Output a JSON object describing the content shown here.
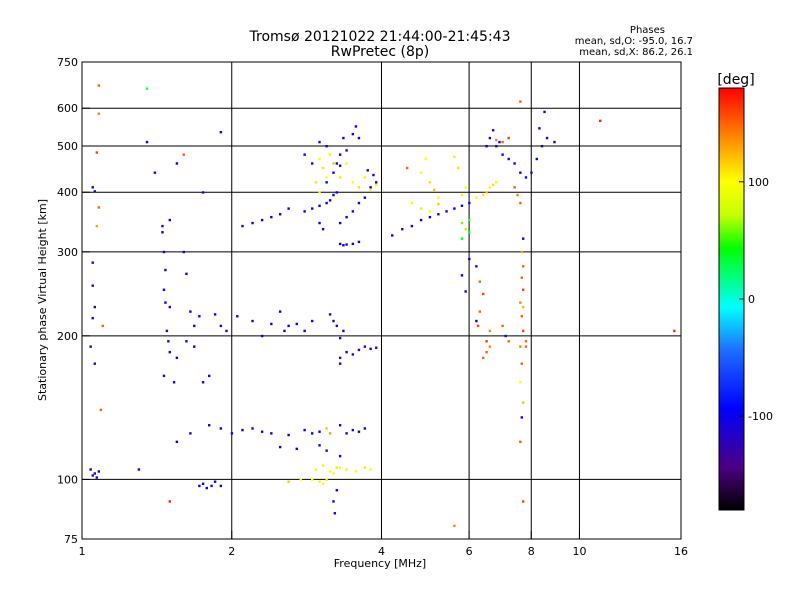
{
  "chart_data": {
    "type": "scatter",
    "title": "Tromsø 20121022 21:44:00-21:45:43",
    "subtitle": "RwPretec (8p)",
    "stats": {
      "heading": "Phases",
      "line1": "mean, sd,O: -95.0, 16.7",
      "line2": "mean, sd,X:  86.2, 26.1"
    },
    "xlabel": "Frequency [MHz]",
    "ylabel": "Stationary phase Virtual Height [km]",
    "xscale": "log",
    "yscale": "log",
    "xlim": [
      1,
      16
    ],
    "ylim": [
      75,
      750
    ],
    "xticks": [
      1,
      2,
      4,
      6,
      8,
      10,
      16
    ],
    "yticks": [
      75,
      100,
      200,
      300,
      400,
      500,
      600,
      750
    ],
    "grid": true,
    "colorbar": {
      "label": "[deg]",
      "range": [
        -180,
        180
      ],
      "ticks": [
        100,
        0,
        -100
      ]
    },
    "points": [
      [
        1.04,
        105,
        -100
      ],
      [
        1.06,
        103,
        -110
      ],
      [
        1.08,
        104,
        -95
      ],
      [
        1.05,
        102,
        -120
      ],
      [
        1.07,
        101,
        -105
      ],
      [
        1.05,
        218,
        -120
      ],
      [
        1.06,
        230,
        -130
      ],
      [
        1.04,
        190,
        -130
      ],
      [
        1.06,
        175,
        -125
      ],
      [
        1.05,
        255,
        -110
      ],
      [
        1.05,
        285,
        -115
      ],
      [
        1.08,
        585,
        140
      ],
      [
        1.07,
        485,
        160
      ],
      [
        1.08,
        372,
        150
      ],
      [
        1.07,
        340,
        130
      ],
      [
        1.06,
        402,
        -105
      ],
      [
        1.05,
        410,
        -100
      ],
      [
        1.1,
        210,
        150
      ],
      [
        1.09,
        140,
        150
      ],
      [
        1.08,
        670,
        150
      ],
      [
        1.35,
        660,
        20
      ],
      [
        1.5,
        90,
        170
      ],
      [
        1.3,
        105,
        -110
      ],
      [
        1.45,
        340,
        -100
      ],
      [
        1.45,
        330,
        -110
      ],
      [
        1.5,
        350,
        -95
      ],
      [
        1.46,
        300,
        -100
      ],
      [
        1.47,
        275,
        -110
      ],
      [
        1.46,
        250,
        -105
      ],
      [
        1.47,
        235,
        -95
      ],
      [
        1.5,
        230,
        -105
      ],
      [
        1.48,
        205,
        -115
      ],
      [
        1.49,
        195,
        -120
      ],
      [
        1.5,
        185,
        -110
      ],
      [
        1.55,
        180,
        -100
      ],
      [
        1.46,
        165,
        -105
      ],
      [
        1.53,
        160,
        -100
      ],
      [
        1.6,
        300,
        -100
      ],
      [
        1.62,
        270,
        -110
      ],
      [
        1.65,
        225,
        -100
      ],
      [
        1.68,
        210,
        -95
      ],
      [
        1.62,
        195,
        -105
      ],
      [
        1.68,
        190,
        -110
      ],
      [
        1.75,
        160,
        -100
      ],
      [
        1.8,
        165,
        -110
      ],
      [
        1.72,
        220,
        -95
      ],
      [
        1.85,
        222,
        -105
      ],
      [
        1.9,
        210,
        -100
      ],
      [
        1.95,
        205,
        -110
      ],
      [
        2.05,
        220,
        -100
      ],
      [
        2.2,
        215,
        -105
      ],
      [
        2.3,
        200,
        -100
      ],
      [
        2.4,
        212,
        -110
      ],
      [
        2.5,
        225,
        -100
      ],
      [
        2.55,
        205,
        -105
      ],
      [
        2.6,
        210,
        -95
      ],
      [
        2.7,
        212,
        -100
      ],
      [
        2.8,
        205,
        -110
      ],
      [
        2.9,
        215,
        -100
      ],
      [
        1.72,
        97,
        -110
      ],
      [
        1.75,
        98,
        -105
      ],
      [
        1.78,
        96,
        -100
      ],
      [
        1.82,
        97,
        -110
      ],
      [
        1.85,
        99,
        -100
      ],
      [
        1.9,
        97,
        -105
      ],
      [
        2.9,
        100,
        100
      ],
      [
        3.0,
        99,
        90
      ],
      [
        3.05,
        98,
        95
      ],
      [
        3.1,
        100,
        110
      ],
      [
        2.75,
        100,
        100
      ],
      [
        2.6,
        99,
        120
      ],
      [
        3.2,
        90,
        -100
      ],
      [
        3.22,
        85,
        -110
      ],
      [
        3.25,
        95,
        -100
      ],
      [
        1.55,
        120,
        -100
      ],
      [
        1.65,
        125,
        -110
      ],
      [
        1.8,
        130,
        -100
      ],
      [
        1.9,
        128,
        -105
      ],
      [
        2.0,
        125,
        -100
      ],
      [
        2.1,
        127,
        -110
      ],
      [
        2.2,
        128,
        -100
      ],
      [
        2.3,
        126,
        -105
      ],
      [
        2.4,
        125,
        -110
      ],
      [
        2.6,
        124,
        -100
      ],
      [
        2.8,
        127,
        -105
      ],
      [
        2.9,
        125,
        -100
      ],
      [
        3.0,
        126,
        -110
      ],
      [
        3.1,
        128,
        120
      ],
      [
        3.15,
        125,
        130
      ],
      [
        3.3,
        130,
        -100
      ],
      [
        3.4,
        125,
        -105
      ],
      [
        3.5,
        127,
        -110
      ],
      [
        3.6,
        126,
        -100
      ],
      [
        3.7,
        128,
        -105
      ],
      [
        3.8,
        105,
        100
      ],
      [
        3.7,
        106,
        110
      ],
      [
        3.55,
        104,
        100
      ],
      [
        3.4,
        105,
        90
      ],
      [
        3.3,
        106,
        95
      ],
      [
        2.95,
        105,
        100
      ],
      [
        3.05,
        107,
        105
      ],
      [
        3.15,
        104,
        100
      ],
      [
        3.25,
        106,
        110
      ],
      [
        3.2,
        103,
        95
      ],
      [
        3.0,
        118,
        -100
      ],
      [
        3.1,
        115,
        -110
      ],
      [
        3.3,
        112,
        -105
      ],
      [
        2.7,
        116,
        -100
      ],
      [
        2.5,
        117,
        -105
      ],
      [
        3.3,
        180,
        -130
      ],
      [
        3.4,
        185,
        -125
      ],
      [
        3.5,
        183,
        -130
      ],
      [
        3.6,
        187,
        -135
      ],
      [
        3.7,
        190,
        -130
      ],
      [
        3.8,
        188,
        -125
      ],
      [
        3.9,
        189,
        -130
      ],
      [
        3.3,
        198,
        -130
      ],
      [
        3.35,
        205,
        -120
      ],
      [
        3.25,
        210,
        -125
      ],
      [
        3.2,
        215,
        -130
      ],
      [
        3.15,
        222,
        -125
      ],
      [
        3.3,
        175,
        -110
      ],
      [
        3.3,
        312,
        -100
      ],
      [
        3.35,
        310,
        -105
      ],
      [
        3.4,
        311,
        -110
      ],
      [
        3.5,
        312,
        -100
      ],
      [
        3.6,
        315,
        -105
      ],
      [
        3.3,
        345,
        -100
      ],
      [
        3.4,
        355,
        -105
      ],
      [
        3.5,
        365,
        -110
      ],
      [
        3.6,
        380,
        -100
      ],
      [
        3.7,
        390,
        -105
      ],
      [
        3.8,
        410,
        -110
      ],
      [
        3.9,
        420,
        -100
      ],
      [
        3.5,
        420,
        100
      ],
      [
        3.6,
        410,
        110
      ],
      [
        3.7,
        430,
        105
      ],
      [
        3.8,
        405,
        100
      ],
      [
        3.9,
        415,
        95
      ],
      [
        3.85,
        435,
        -100
      ],
      [
        3.75,
        445,
        -105
      ],
      [
        2.8,
        365,
        -100
      ],
      [
        2.9,
        370,
        -105
      ],
      [
        3.0,
        375,
        -110
      ],
      [
        3.1,
        380,
        -100
      ],
      [
        3.15,
        385,
        -105
      ],
      [
        3.2,
        395,
        -100
      ],
      [
        3.25,
        400,
        -110
      ],
      [
        2.6,
        370,
        -100
      ],
      [
        2.5,
        360,
        -105
      ],
      [
        2.4,
        355,
        -110
      ],
      [
        2.3,
        350,
        -100
      ],
      [
        2.2,
        345,
        -105
      ],
      [
        2.1,
        340,
        -110
      ],
      [
        3.0,
        345,
        -100
      ],
      [
        3.05,
        335,
        -105
      ],
      [
        3.1,
        420,
        -100
      ],
      [
        3.2,
        440,
        -105
      ],
      [
        3.25,
        460,
        -110
      ],
      [
        3.3,
        480,
        -100
      ],
      [
        3.35,
        520,
        -105
      ],
      [
        3.5,
        530,
        -110
      ],
      [
        3.55,
        550,
        -100
      ],
      [
        3.6,
        520,
        -105
      ],
      [
        3.4,
        490,
        -110
      ],
      [
        3.3,
        455,
        -100
      ],
      [
        2.8,
        480,
        -100
      ],
      [
        2.9,
        460,
        -105
      ],
      [
        3.0,
        510,
        -110
      ],
      [
        3.1,
        500,
        -100
      ],
      [
        3.0,
        470,
        100
      ],
      [
        3.05,
        450,
        110
      ],
      [
        3.1,
        430,
        100
      ],
      [
        3.2,
        460,
        120
      ],
      [
        3.15,
        480,
        105
      ],
      [
        3.4,
        460,
        100
      ],
      [
        3.3,
        430,
        110
      ],
      [
        3.0,
        400,
        95
      ],
      [
        2.95,
        420,
        110
      ],
      [
        4.2,
        325,
        -100
      ],
      [
        4.4,
        335,
        -105
      ],
      [
        4.6,
        340,
        -110
      ],
      [
        4.8,
        350,
        -100
      ],
      [
        5.0,
        355,
        -105
      ],
      [
        5.2,
        360,
        -110
      ],
      [
        5.4,
        365,
        -100
      ],
      [
        5.6,
        370,
        -105
      ],
      [
        5.8,
        375,
        -100
      ],
      [
        6.0,
        380,
        -110
      ],
      [
        4.6,
        380,
        100
      ],
      [
        4.8,
        370,
        110
      ],
      [
        5.0,
        365,
        100
      ],
      [
        5.2,
        378,
        115
      ],
      [
        5.8,
        345,
        60
      ],
      [
        5.9,
        335,
        70
      ],
      [
        6.0,
        350,
        50
      ],
      [
        5.8,
        320,
        40
      ],
      [
        6.0,
        330,
        30
      ],
      [
        4.5,
        450,
        150
      ],
      [
        4.8,
        440,
        100
      ],
      [
        5.0,
        420,
        110
      ],
      [
        5.1,
        405,
        120
      ],
      [
        5.2,
        390,
        100
      ],
      [
        4.9,
        470,
        100
      ],
      [
        5.6,
        475,
        80
      ],
      [
        5.7,
        450,
        110
      ],
      [
        5.9,
        410,
        100
      ],
      [
        5.8,
        395,
        105
      ],
      [
        6.2,
        390,
        100
      ],
      [
        6.4,
        395,
        110
      ],
      [
        6.5,
        400,
        120
      ],
      [
        6.6,
        410,
        100
      ],
      [
        6.7,
        415,
        110
      ],
      [
        6.8,
        420,
        105
      ],
      [
        6.5,
        500,
        -100
      ],
      [
        6.6,
        520,
        -105
      ],
      [
        6.7,
        540,
        -110
      ],
      [
        6.8,
        500,
        -100
      ],
      [
        6.9,
        510,
        -105
      ],
      [
        7.0,
        480,
        -100
      ],
      [
        7.2,
        470,
        -105
      ],
      [
        7.4,
        460,
        -110
      ],
      [
        7.6,
        440,
        -100
      ],
      [
        7.8,
        430,
        -105
      ],
      [
        8.0,
        440,
        -110
      ],
      [
        8.2,
        470,
        -100
      ],
      [
        8.4,
        500,
        -105
      ],
      [
        8.6,
        520,
        -110
      ],
      [
        8.9,
        510,
        -100
      ],
      [
        7.0,
        510,
        150
      ],
      [
        7.2,
        520,
        160
      ],
      [
        7.4,
        410,
        150
      ],
      [
        7.5,
        395,
        140
      ],
      [
        7.6,
        380,
        150
      ],
      [
        7.6,
        620,
        150
      ],
      [
        7.7,
        280,
        150
      ],
      [
        7.65,
        265,
        150
      ],
      [
        7.7,
        250,
        160
      ],
      [
        7.6,
        235,
        140
      ],
      [
        7.65,
        220,
        150
      ],
      [
        7.7,
        205,
        160
      ],
      [
        7.6,
        190,
        140
      ],
      [
        7.65,
        175,
        150
      ],
      [
        7.6,
        160,
        100
      ],
      [
        7.7,
        145,
        120
      ],
      [
        7.65,
        135,
        -100
      ],
      [
        7.6,
        120,
        150
      ],
      [
        7.7,
        90,
        160
      ],
      [
        7.7,
        320,
        -100
      ],
      [
        7.65,
        300,
        130
      ],
      [
        7.7,
        230,
        120
      ],
      [
        6.4,
        180,
        150
      ],
      [
        6.5,
        185,
        150
      ],
      [
        6.6,
        190,
        140
      ],
      [
        6.5,
        195,
        160
      ],
      [
        6.6,
        205,
        140
      ],
      [
        7.0,
        210,
        150
      ],
      [
        7.1,
        200,
        -110
      ],
      [
        7.2,
        195,
        150
      ],
      [
        6.2,
        215,
        -100
      ],
      [
        6.25,
        210,
        160
      ],
      [
        6.3,
        225,
        150
      ],
      [
        6.0,
        290,
        -100
      ],
      [
        6.2,
        280,
        -110
      ],
      [
        6.3,
        260,
        150
      ],
      [
        6.4,
        245,
        160
      ],
      [
        5.8,
        268,
        -100
      ],
      [
        5.9,
        248,
        -110
      ],
      [
        7.8,
        195,
        150
      ],
      [
        7.8,
        190,
        150
      ],
      [
        5.6,
        80,
        140
      ],
      [
        11.0,
        565,
        170
      ],
      [
        15.5,
        205,
        170
      ],
      [
        8.5,
        590,
        -110
      ],
      [
        8.3,
        545,
        -100
      ],
      [
        6.8,
        515,
        140
      ],
      [
        1.4,
        440,
        -110
      ],
      [
        1.35,
        510,
        -100
      ],
      [
        1.6,
        480,
        150
      ],
      [
        1.55,
        460,
        -100
      ],
      [
        1.9,
        535,
        -105
      ],
      [
        1.75,
        400,
        -100
      ]
    ]
  }
}
